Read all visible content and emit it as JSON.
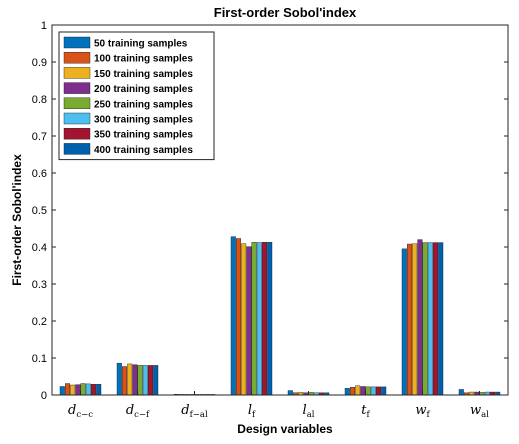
{
  "colors": {
    "series": [
      "#0072BD",
      "#D95319",
      "#EDB120",
      "#7E2F8E",
      "#77AC30",
      "#4DBEEE",
      "#A2142F",
      "#0060B0"
    ],
    "axis": "#262626",
    "background": "#ffffff"
  },
  "chart_data": {
    "type": "bar",
    "title": "First-order Sobol'index",
    "xlabel": "Design variables",
    "ylabel": "First-order Sobol'index",
    "ylim": [
      0,
      1
    ],
    "yticks": [
      0,
      0.1,
      0.2,
      0.3,
      0.4,
      0.5,
      0.6,
      0.7,
      0.8,
      0.9,
      1
    ],
    "ytick_labels": [
      "0",
      "0.1",
      "0.2",
      "0.3",
      "0.4",
      "0.5",
      "0.6",
      "0.7",
      "0.8",
      "0.9",
      "1"
    ],
    "grid": false,
    "legend_position": "top-left",
    "categories": [
      {
        "base": "d",
        "sub": "c−c"
      },
      {
        "base": "d",
        "sub": "c−f"
      },
      {
        "base": "d",
        "sub": "f−al"
      },
      {
        "base": "l",
        "sub": "f"
      },
      {
        "base": "l",
        "sub": "al"
      },
      {
        "base": "t",
        "sub": "f"
      },
      {
        "base": "w",
        "sub": "f"
      },
      {
        "base": "w",
        "sub": "al"
      }
    ],
    "series": [
      {
        "name": "50 training samples",
        "values": [
          0.023,
          0.086,
          0.002,
          0.428,
          0.012,
          0.018,
          0.395,
          0.015
        ]
      },
      {
        "name": "100 training samples",
        "values": [
          0.031,
          0.077,
          0.001,
          0.423,
          0.006,
          0.021,
          0.408,
          0.006
        ]
      },
      {
        "name": "150 training samples",
        "values": [
          0.027,
          0.084,
          0.001,
          0.409,
          0.007,
          0.025,
          0.409,
          0.008
        ]
      },
      {
        "name": "200 training samples",
        "values": [
          0.028,
          0.082,
          0.001,
          0.401,
          0.006,
          0.023,
          0.42,
          0.008
        ]
      },
      {
        "name": "250 training samples",
        "values": [
          0.031,
          0.08,
          0.001,
          0.413,
          0.007,
          0.022,
          0.412,
          0.007
        ]
      },
      {
        "name": "300 training samples",
        "values": [
          0.03,
          0.08,
          0.001,
          0.412,
          0.006,
          0.022,
          0.412,
          0.008
        ]
      },
      {
        "name": "350 training samples",
        "values": [
          0.029,
          0.08,
          0.001,
          0.413,
          0.006,
          0.022,
          0.412,
          0.008
        ]
      },
      {
        "name": "400 training samples",
        "values": [
          0.029,
          0.08,
          0.001,
          0.413,
          0.006,
          0.022,
          0.412,
          0.008
        ]
      }
    ]
  }
}
